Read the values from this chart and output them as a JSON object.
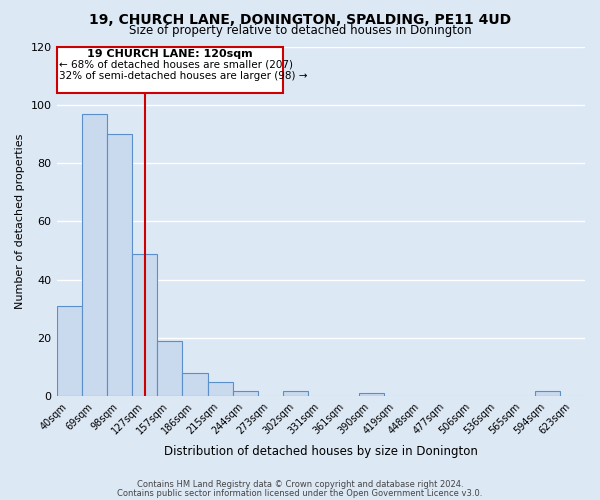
{
  "title": "19, CHURCH LANE, DONINGTON, SPALDING, PE11 4UD",
  "subtitle": "Size of property relative to detached houses in Donington",
  "xlabel": "Distribution of detached houses by size in Donington",
  "ylabel": "Number of detached properties",
  "bar_color": "#c9d9ee",
  "bar_edge_color": "#5b8fc9",
  "background_color": "#dde8f5",
  "grid_color": "#ffffff",
  "bin_labels": [
    "40sqm",
    "69sqm",
    "98sqm",
    "127sqm",
    "157sqm",
    "186sqm",
    "215sqm",
    "244sqm",
    "273sqm",
    "302sqm",
    "331sqm",
    "361sqm",
    "390sqm",
    "419sqm",
    "448sqm",
    "477sqm",
    "506sqm",
    "536sqm",
    "565sqm",
    "594sqm",
    "623sqm"
  ],
  "bar_heights": [
    31,
    97,
    90,
    49,
    19,
    8,
    5,
    2,
    0,
    2,
    0,
    0,
    1,
    0,
    0,
    0,
    0,
    0,
    0,
    2,
    0
  ],
  "ylim": [
    0,
    120
  ],
  "yticks": [
    0,
    20,
    40,
    60,
    80,
    100,
    120
  ],
  "red_line_x": 3,
  "annotation_title": "19 CHURCH LANE: 120sqm",
  "annotation_line1": "← 68% of detached houses are smaller (207)",
  "annotation_line2": "32% of semi-detached houses are larger (98) →",
  "annotation_box_edge": "#cc0000",
  "red_line_color": "#cc0000",
  "footer_line1": "Contains HM Land Registry data © Crown copyright and database right 2024.",
  "footer_line2": "Contains public sector information licensed under the Open Government Licence v3.0."
}
